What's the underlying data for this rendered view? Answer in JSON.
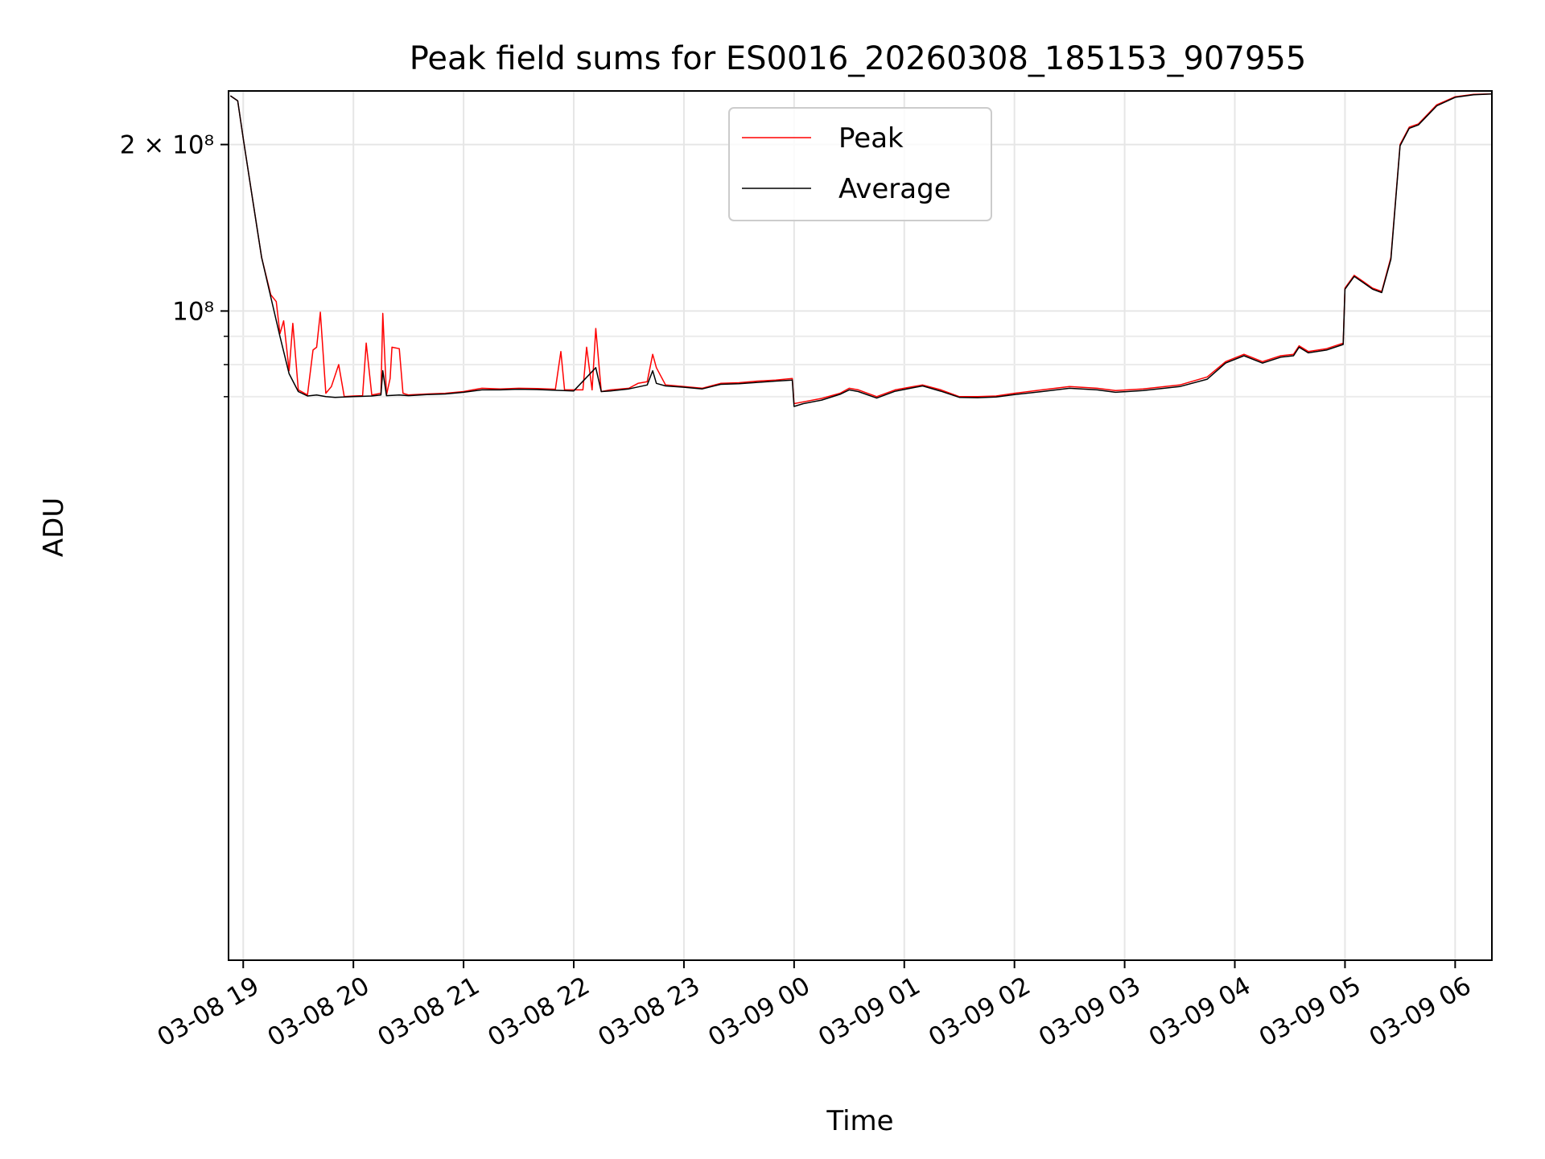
{
  "chart_data": {
    "type": "line",
    "title": "Peak field sums for ES0016_20260308_185153_907955",
    "xlabel": "Time",
    "ylabel": "ADU",
    "yscale": "log",
    "grid": true,
    "legend_position": "top-center",
    "x_tick_labels": [
      "03-08 19",
      "03-08 20",
      "03-08 21",
      "03-08 22",
      "03-08 23",
      "03-09 00",
      "03-09 01",
      "03-09 02",
      "03-09 03",
      "03-09 04",
      "03-09 05",
      "03-09 06"
    ],
    "y_tick_labels": {
      "major": [
        "10⁸",
        "2 × 10⁸"
      ]
    },
    "xlim": [
      "2026-03-08 18:52",
      "2026-03-09 06:20"
    ],
    "ylim": [
      6700000,
      250000000
    ],
    "series": [
      {
        "name": "Peak",
        "color": "#ff0000",
        "points": [
          [
            "2026-03-08 18:53",
            245000000
          ],
          [
            "2026-03-08 18:57",
            240000000
          ],
          [
            "2026-03-08 19:00",
            205000000
          ],
          [
            "2026-03-08 19:05",
            160000000
          ],
          [
            "2026-03-08 19:10",
            125000000
          ],
          [
            "2026-03-08 19:15",
            107000000
          ],
          [
            "2026-03-08 19:18",
            104000000
          ],
          [
            "2026-03-08 19:20",
            91000000
          ],
          [
            "2026-03-08 19:22",
            96000000
          ],
          [
            "2026-03-08 19:25",
            78000000
          ],
          [
            "2026-03-08 19:27",
            95000000
          ],
          [
            "2026-03-08 19:30",
            72000000
          ],
          [
            "2026-03-08 19:35",
            70500000
          ],
          [
            "2026-03-08 19:38",
            85000000
          ],
          [
            "2026-03-08 19:40",
            86000000
          ],
          [
            "2026-03-08 19:42",
            99500000
          ],
          [
            "2026-03-08 19:45",
            71000000
          ],
          [
            "2026-03-08 19:48",
            73000000
          ],
          [
            "2026-03-08 19:52",
            80000000
          ],
          [
            "2026-03-08 19:55",
            70000000
          ],
          [
            "2026-03-08 20:00",
            70200000
          ],
          [
            "2026-03-08 20:05",
            70300000
          ],
          [
            "2026-03-08 20:07",
            87500000
          ],
          [
            "2026-03-08 20:10",
            70500000
          ],
          [
            "2026-03-08 20:15",
            71000000
          ],
          [
            "2026-03-08 20:16",
            99000000
          ],
          [
            "2026-03-08 20:18",
            70500000
          ],
          [
            "2026-03-08 20:20",
            75500000
          ],
          [
            "2026-03-08 20:21",
            86000000
          ],
          [
            "2026-03-08 20:25",
            85500000
          ],
          [
            "2026-03-08 20:27",
            71000000
          ],
          [
            "2026-03-08 20:30",
            70500000
          ],
          [
            "2026-03-08 20:40",
            70800000
          ],
          [
            "2026-03-08 20:50",
            71000000
          ],
          [
            "2026-03-08 21:00",
            71500000
          ],
          [
            "2026-03-08 21:05",
            72000000
          ],
          [
            "2026-03-08 21:10",
            72500000
          ],
          [
            "2026-03-08 21:20",
            72300000
          ],
          [
            "2026-03-08 21:30",
            72500000
          ],
          [
            "2026-03-08 21:40",
            72400000
          ],
          [
            "2026-03-08 21:50",
            72200000
          ],
          [
            "2026-03-08 21:53",
            84500000
          ],
          [
            "2026-03-08 21:55",
            72000000
          ],
          [
            "2026-03-08 22:00",
            72000000
          ],
          [
            "2026-03-08 22:05",
            72000000
          ],
          [
            "2026-03-08 22:07",
            86000000
          ],
          [
            "2026-03-08 22:10",
            72000000
          ],
          [
            "2026-03-08 22:12",
            93000000
          ],
          [
            "2026-03-08 22:15",
            71500000
          ],
          [
            "2026-03-08 22:20",
            72000000
          ],
          [
            "2026-03-08 22:30",
            72500000
          ],
          [
            "2026-03-08 22:35",
            74000000
          ],
          [
            "2026-03-08 22:40",
            74500000
          ],
          [
            "2026-03-08 22:43",
            83500000
          ],
          [
            "2026-03-08 22:45",
            79000000
          ],
          [
            "2026-03-08 22:50",
            73500000
          ],
          [
            "2026-03-08 23:00",
            73000000
          ],
          [
            "2026-03-08 23:10",
            72500000
          ],
          [
            "2026-03-08 23:20",
            74000000
          ],
          [
            "2026-03-08 23:30",
            74200000
          ],
          [
            "2026-03-08 23:40",
            74700000
          ],
          [
            "2026-03-08 23:50",
            75000000
          ],
          [
            "2026-03-08 23:59",
            75500000
          ],
          [
            "2026-03-09 00:00",
            68000000
          ],
          [
            "2026-03-09 00:05",
            68500000
          ],
          [
            "2026-03-09 00:15",
            69500000
          ],
          [
            "2026-03-09 00:25",
            71000000
          ],
          [
            "2026-03-09 00:30",
            72500000
          ],
          [
            "2026-03-09 00:35",
            72000000
          ],
          [
            "2026-03-09 00:45",
            70000000
          ],
          [
            "2026-03-09 00:55",
            72000000
          ],
          [
            "2026-03-09 01:05",
            73000000
          ],
          [
            "2026-03-09 01:10",
            73500000
          ],
          [
            "2026-03-09 01:20",
            72000000
          ],
          [
            "2026-03-09 01:30",
            70000000
          ],
          [
            "2026-03-09 01:40",
            70000000
          ],
          [
            "2026-03-09 01:50",
            70200000
          ],
          [
            "2026-03-09 02:00",
            71000000
          ],
          [
            "2026-03-09 02:15",
            72000000
          ],
          [
            "2026-03-09 02:30",
            73000000
          ],
          [
            "2026-03-09 02:45",
            72500000
          ],
          [
            "2026-03-09 02:55",
            71800000
          ],
          [
            "2026-03-09 03:10",
            72300000
          ],
          [
            "2026-03-09 03:30",
            73500000
          ],
          [
            "2026-03-09 03:45",
            76000000
          ],
          [
            "2026-03-09 03:55",
            81000000
          ],
          [
            "2026-03-09 04:05",
            83500000
          ],
          [
            "2026-03-09 04:15",
            81000000
          ],
          [
            "2026-03-09 04:25",
            83000000
          ],
          [
            "2026-03-09 04:32",
            83500000
          ],
          [
            "2026-03-09 04:35",
            86500000
          ],
          [
            "2026-03-09 04:40",
            84500000
          ],
          [
            "2026-03-09 04:50",
            85500000
          ],
          [
            "2026-03-09 04:59",
            87500000
          ],
          [
            "2026-03-09 05:00",
            110000000
          ],
          [
            "2026-03-09 05:05",
            116000000
          ],
          [
            "2026-03-09 05:10",
            113000000
          ],
          [
            "2026-03-09 05:15",
            110000000
          ],
          [
            "2026-03-09 05:20",
            108500000
          ],
          [
            "2026-03-09 05:25",
            125000000
          ],
          [
            "2026-03-09 05:30",
            200000000
          ],
          [
            "2026-03-09 05:35",
            215000000
          ],
          [
            "2026-03-09 05:40",
            218000000
          ],
          [
            "2026-03-09 05:50",
            236000000
          ],
          [
            "2026-03-09 06:00",
            244000000
          ],
          [
            "2026-03-09 06:10",
            246500000
          ],
          [
            "2026-03-09 06:20",
            247000000
          ]
        ]
      },
      {
        "name": "Average",
        "color": "#000000",
        "points": [
          [
            "2026-03-08 18:53",
            245000000
          ],
          [
            "2026-03-08 18:57",
            240000000
          ],
          [
            "2026-03-08 19:00",
            205000000
          ],
          [
            "2026-03-08 19:05",
            160000000
          ],
          [
            "2026-03-08 19:10",
            125000000
          ],
          [
            "2026-03-08 19:15",
            106000000
          ],
          [
            "2026-03-08 19:20",
            90000000
          ],
          [
            "2026-03-08 19:25",
            77000000
          ],
          [
            "2026-03-08 19:30",
            71500000
          ],
          [
            "2026-03-08 19:35",
            70200000
          ],
          [
            "2026-03-08 19:40",
            70500000
          ],
          [
            "2026-03-08 19:45",
            70000000
          ],
          [
            "2026-03-08 19:50",
            69800000
          ],
          [
            "2026-03-08 20:00",
            70000000
          ],
          [
            "2026-03-08 20:10",
            70200000
          ],
          [
            "2026-03-08 20:15",
            70500000
          ],
          [
            "2026-03-08 20:16",
            78000000
          ],
          [
            "2026-03-08 20:18",
            70300000
          ],
          [
            "2026-03-08 20:25",
            70500000
          ],
          [
            "2026-03-08 20:30",
            70300000
          ],
          [
            "2026-03-08 20:40",
            70600000
          ],
          [
            "2026-03-08 20:50",
            70800000
          ],
          [
            "2026-03-08 21:00",
            71300000
          ],
          [
            "2026-03-08 21:10",
            72000000
          ],
          [
            "2026-03-08 21:20",
            72000000
          ],
          [
            "2026-03-08 21:30",
            72200000
          ],
          [
            "2026-03-08 21:40",
            72100000
          ],
          [
            "2026-03-08 21:50",
            71900000
          ],
          [
            "2026-03-08 22:00",
            71700000
          ],
          [
            "2026-03-08 22:12",
            79000000
          ],
          [
            "2026-03-08 22:15",
            71500000
          ],
          [
            "2026-03-08 22:20",
            71700000
          ],
          [
            "2026-03-08 22:30",
            72300000
          ],
          [
            "2026-03-08 22:40",
            73500000
          ],
          [
            "2026-03-08 22:43",
            78000000
          ],
          [
            "2026-03-08 22:45",
            74000000
          ],
          [
            "2026-03-08 22:50",
            73200000
          ],
          [
            "2026-03-08 23:00",
            72800000
          ],
          [
            "2026-03-08 23:10",
            72300000
          ],
          [
            "2026-03-08 23:20",
            73700000
          ],
          [
            "2026-03-08 23:30",
            73900000
          ],
          [
            "2026-03-08 23:40",
            74300000
          ],
          [
            "2026-03-08 23:50",
            74700000
          ],
          [
            "2026-03-08 23:59",
            75000000
          ],
          [
            "2026-03-09 00:00",
            67200000
          ],
          [
            "2026-03-09 00:05",
            68000000
          ],
          [
            "2026-03-09 00:15",
            69000000
          ],
          [
            "2026-03-09 00:25",
            70700000
          ],
          [
            "2026-03-09 00:30",
            72000000
          ],
          [
            "2026-03-09 00:35",
            71500000
          ],
          [
            "2026-03-09 00:45",
            69600000
          ],
          [
            "2026-03-09 00:55",
            71600000
          ],
          [
            "2026-03-09 01:05",
            72700000
          ],
          [
            "2026-03-09 01:10",
            73200000
          ],
          [
            "2026-03-09 01:20",
            71600000
          ],
          [
            "2026-03-09 01:30",
            69800000
          ],
          [
            "2026-03-09 01:40",
            69700000
          ],
          [
            "2026-03-09 01:50",
            69900000
          ],
          [
            "2026-03-09 02:00",
            70600000
          ],
          [
            "2026-03-09 02:15",
            71500000
          ],
          [
            "2026-03-09 02:30",
            72500000
          ],
          [
            "2026-03-09 02:45",
            72000000
          ],
          [
            "2026-03-09 02:55",
            71300000
          ],
          [
            "2026-03-09 03:10",
            71800000
          ],
          [
            "2026-03-09 03:30",
            73000000
          ],
          [
            "2026-03-09 03:45",
            75300000
          ],
          [
            "2026-03-09 03:55",
            80500000
          ],
          [
            "2026-03-09 04:05",
            83000000
          ],
          [
            "2026-03-09 04:15",
            80500000
          ],
          [
            "2026-03-09 04:25",
            82500000
          ],
          [
            "2026-03-09 04:32",
            83000000
          ],
          [
            "2026-03-09 04:35",
            86000000
          ],
          [
            "2026-03-09 04:40",
            84000000
          ],
          [
            "2026-03-09 04:50",
            85000000
          ],
          [
            "2026-03-09 04:59",
            87000000
          ],
          [
            "2026-03-09 05:00",
            109500000
          ],
          [
            "2026-03-09 05:05",
            115500000
          ],
          [
            "2026-03-09 05:10",
            112500000
          ],
          [
            "2026-03-09 05:15",
            109500000
          ],
          [
            "2026-03-09 05:20",
            108000000
          ],
          [
            "2026-03-09 05:25",
            124000000
          ],
          [
            "2026-03-09 05:30",
            199000000
          ],
          [
            "2026-03-09 05:35",
            214000000
          ],
          [
            "2026-03-09 05:40",
            217000000
          ],
          [
            "2026-03-09 05:50",
            235000000
          ],
          [
            "2026-03-09 06:00",
            243500000
          ],
          [
            "2026-03-09 06:10",
            246000000
          ],
          [
            "2026-03-09 06:20",
            246800000
          ]
        ]
      }
    ]
  }
}
